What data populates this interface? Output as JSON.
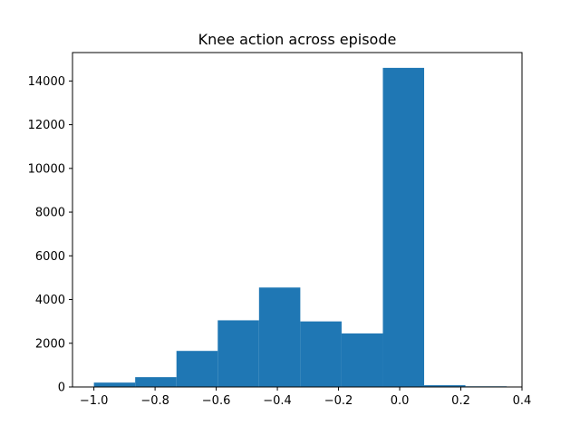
{
  "chart_data": {
    "type": "histogram",
    "title": "Knee action across episode",
    "xlabel": "",
    "ylabel": "",
    "xlim": [
      -1.07,
      0.4
    ],
    "ylim": [
      0,
      15300
    ],
    "xticks": [
      -1.0,
      -0.8,
      -0.6,
      -0.4,
      -0.2,
      0.0,
      0.2,
      0.4
    ],
    "xtick_labels": [
      "−1.0",
      "−0.8",
      "−0.6",
      "−0.4",
      "−0.2",
      "0.0",
      "0.2",
      "0.4"
    ],
    "yticks": [
      0,
      2000,
      4000,
      6000,
      8000,
      10000,
      12000,
      14000
    ],
    "ytick_labels": [
      "0",
      "2000",
      "4000",
      "6000",
      "8000",
      "10000",
      "12000",
      "14000"
    ],
    "bin_edges": [
      -1.0,
      -0.865,
      -0.73,
      -0.595,
      -0.46,
      -0.325,
      -0.19,
      -0.055,
      0.08,
      0.215,
      0.35
    ],
    "values": [
      200,
      450,
      1650,
      3050,
      4550,
      3000,
      2450,
      14600,
      80,
      30
    ],
    "bar_color": "#1f77b4",
    "grid": false,
    "legend": "none"
  }
}
